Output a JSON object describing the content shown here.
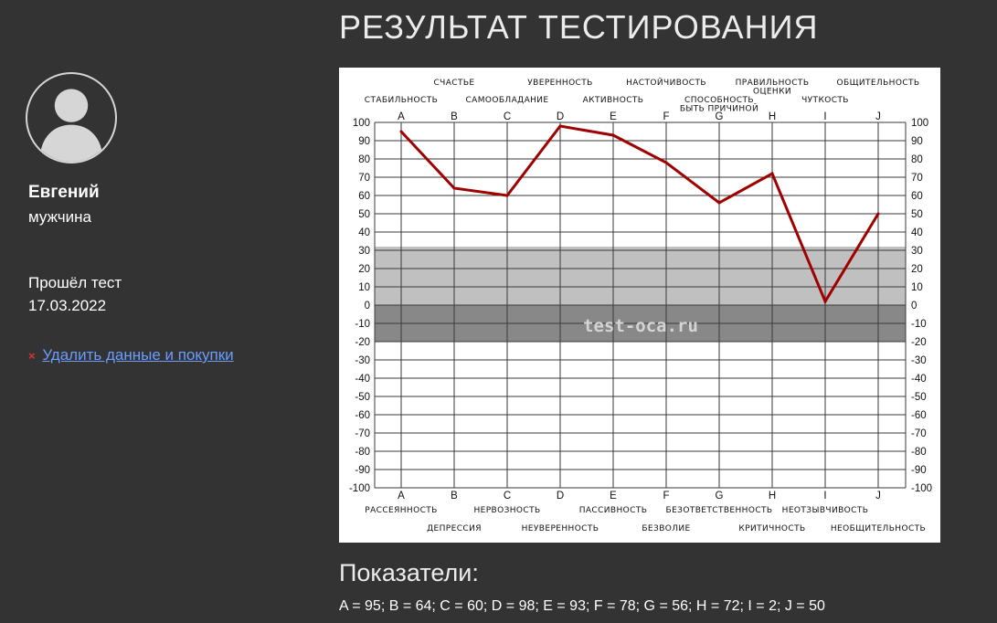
{
  "user": {
    "name": "Евгений",
    "gender": "мужчина",
    "passed_label": "Прошёл тест",
    "passed_date": "17.03.2022",
    "delete_icon": "×",
    "delete_label": "Удалить данные и покупки"
  },
  "page_title": "РЕЗУЛЬТАТ ТЕСТИРОВАНИЯ",
  "chart_data": {
    "type": "line",
    "categories": [
      "A",
      "B",
      "C",
      "D",
      "E",
      "F",
      "G",
      "H",
      "I",
      "J"
    ],
    "series": [
      {
        "values": [
          95,
          64,
          60,
          98,
          93,
          78,
          56,
          72,
          2,
          50
        ],
        "color": "#a00000"
      }
    ],
    "ylim": [
      -100,
      100
    ],
    "yticks": [
      100,
      90,
      80,
      70,
      60,
      50,
      40,
      30,
      20,
      10,
      0,
      -10,
      -20,
      -30,
      -40,
      -50,
      -60,
      -70,
      -80,
      -90,
      -100
    ],
    "grid": true,
    "bands": [
      {
        "from": 0,
        "to": 32,
        "color": "#c0c0c0"
      },
      {
        "from": -20,
        "to": 0,
        "color": "#888888"
      }
    ],
    "top_labels": [
      [
        "СТАБИЛЬНОСТЬ"
      ],
      [
        "СЧАСТЬЕ"
      ],
      [
        "САМООБЛАДАНИЕ"
      ],
      [
        "УВЕРЕННОСТЬ"
      ],
      [
        "АКТИВНОСТЬ"
      ],
      [
        "НАСТОЙЧИВОСТЬ"
      ],
      [
        "СПОСОБНОСТЬ",
        "БЫТЬ ПРИЧИНОЙ"
      ],
      [
        "ПРАВИЛЬНОСТЬ",
        "ОЦЕНКИ"
      ],
      [
        "ЧУТКОСТЬ"
      ],
      [
        "ОБЩИТЕЛЬНОСТЬ"
      ]
    ],
    "bottom_labels": [
      "РАССЕЯННОСТЬ",
      "ДЕПРЕССИЯ",
      "НЕРВОЗНОСТЬ",
      "НЕУВЕРЕННОСТЬ",
      "ПАССИВНОСТЬ",
      "БЕЗВОЛИЕ",
      "БЕЗОТВЕТСТВЕННОСТЬ",
      "КРИТИЧНОСТЬ",
      "НЕОТЗЫВЧИВОСТЬ",
      "НЕОБЩИТЕЛЬНОСТЬ"
    ],
    "watermark": "test-oca.ru"
  },
  "indicators_title": "Показатели:",
  "indicators_text": "A = 95; B = 64; C = 60; D = 98; E = 93; F = 78; G = 56; H = 72; I = 2; J = 50"
}
